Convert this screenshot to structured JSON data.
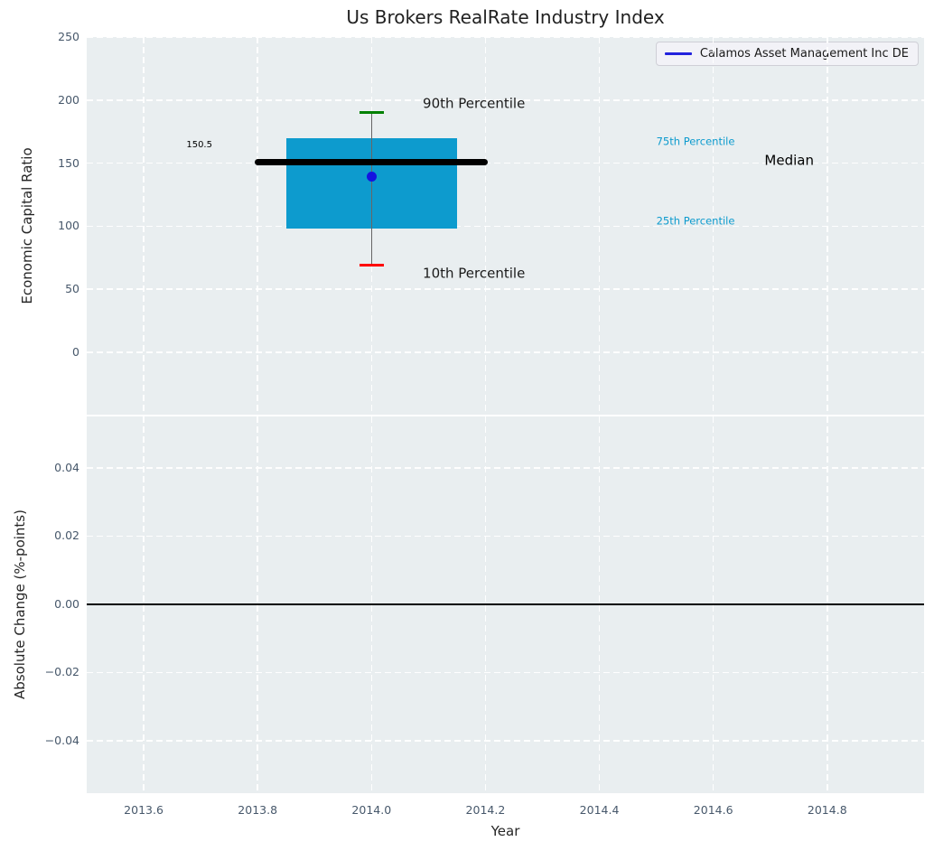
{
  "figure": {
    "title": "Us Brokers RealRate Industry Index"
  },
  "legend": {
    "label": "Calamos Asset Management Inc DE",
    "line_color": "#2222dd"
  },
  "colors": {
    "plot_background": "#e9eef0",
    "grid": "#ffffff",
    "tick_label": "#47586b",
    "box_fill": "#0d9bce",
    "median_line": "#000000",
    "whisker": "#666666",
    "cap_90th": "#008000",
    "cap_10th": "#ff0000",
    "company_dot": "#1414e0",
    "zero_line": "#000000"
  },
  "chart_data": [
    {
      "type": "boxplot",
      "title": "Us Brokers RealRate Industry Index",
      "ylabel": "Economic Capital Ratio",
      "xlim": [
        2013.5,
        2014.97
      ],
      "ylim": [
        -49.4,
        250
      ],
      "grid": true,
      "xticks": {
        "values": [
          2013.6,
          2013.8,
          2014.0,
          2014.2,
          2014.4,
          2014.6,
          2014.8
        ],
        "labels": [
          "2013.6",
          "2013.8",
          "2014.0",
          "2014.2",
          "2014.4",
          "2014.6",
          "2014.8"
        ],
        "show_labels": false
      },
      "yticks": {
        "values": [
          0,
          50,
          100,
          150,
          200,
          250
        ],
        "labels": [
          "0",
          "50",
          "100",
          "150",
          "200",
          "250"
        ]
      },
      "box": {
        "x": 2014.0,
        "box_halfwidth": 0.15,
        "p10": 69,
        "p25": 98,
        "median": 150.5,
        "p75": 170,
        "p90": 190,
        "median_span": [
          2013.8,
          2014.2
        ],
        "median_label": "150.5"
      },
      "company_point": {
        "label": "Calamos Asset Management Inc DE",
        "x": 2014.0,
        "y": 139
      },
      "annotations": [
        {
          "text": "90th Percentile",
          "x": 2014.09,
          "y": 197,
          "color": "#1a1a1a",
          "size": 15
        },
        {
          "text": "10th Percentile",
          "x": 2014.09,
          "y": 62,
          "color": "#1a1a1a",
          "size": 15
        },
        {
          "text": "150.5",
          "x": 2013.675,
          "y": 164,
          "color": "#000000",
          "size": 10
        },
        {
          "text": "75th Percentile",
          "x": 2014.5,
          "y": 167,
          "color": "#0d9bce",
          "size": 11.5
        },
        {
          "text": "25th Percentile",
          "x": 2014.5,
          "y": 104,
          "color": "#0d9bce",
          "size": 11.5
        },
        {
          "text": "Median",
          "x": 2014.69,
          "y": 152,
          "color": "#000000",
          "size": 15
        }
      ],
      "legend_position": "upper right"
    },
    {
      "type": "line",
      "ylabel": "Absolute Change (%-points)",
      "xlabel": "Year",
      "xlim": [
        2013.5,
        2014.97
      ],
      "ylim": [
        -0.0554,
        0.0551
      ],
      "grid": true,
      "xticks": {
        "values": [
          2013.6,
          2013.8,
          2014.0,
          2014.2,
          2014.4,
          2014.6,
          2014.8
        ],
        "labels": [
          "2013.6",
          "2013.8",
          "2014.0",
          "2014.2",
          "2014.4",
          "2014.6",
          "2014.8"
        ],
        "show_labels": true
      },
      "yticks": {
        "values": [
          -0.04,
          -0.02,
          0.0,
          0.02,
          0.04
        ],
        "labels": [
          "−0.04",
          "−0.02",
          "0.00",
          "0.02",
          "0.04"
        ]
      },
      "zero_line": 0.0,
      "series": []
    }
  ]
}
